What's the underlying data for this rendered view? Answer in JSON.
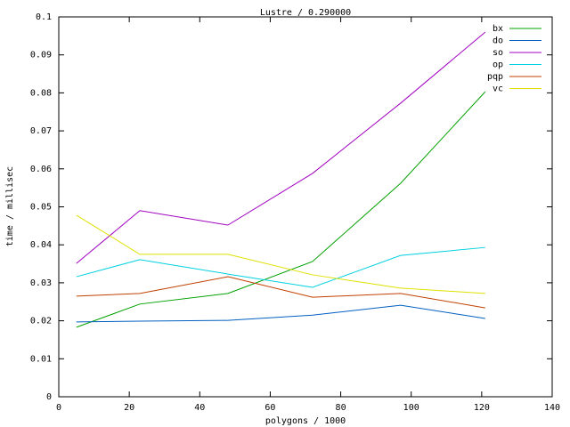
{
  "chart_data": {
    "type": "line",
    "title": "Lustre / 0.290000",
    "x_label": "polygons / 1000",
    "y_label": "time / millisec",
    "x": [
      5,
      23,
      48,
      72,
      97,
      121
    ],
    "series": [
      {
        "name": "bx",
        "color": "#00a000",
        "values": [
          0.0183,
          0.0244,
          0.0272,
          0.0356,
          0.0562,
          0.0803
        ]
      },
      {
        "name": "do",
        "color": "#0060c0",
        "values": [
          0.0197,
          0.0199,
          0.0201,
          0.0215,
          0.0241,
          0.0206
        ]
      },
      {
        "name": "so",
        "color": "#a000c0",
        "values": [
          0.0351,
          0.049,
          0.0452,
          0.0588,
          0.0773,
          0.096
        ]
      },
      {
        "name": "op",
        "color": "#00d0e0",
        "values": [
          0.0316,
          0.0361,
          0.0323,
          0.0288,
          0.0372,
          0.0393
        ]
      },
      {
        "name": "pqp",
        "color": "#c04000",
        "values": [
          0.0265,
          0.0272,
          0.0316,
          0.0262,
          0.0272,
          0.0234
        ]
      },
      {
        "name": "vc",
        "color": "#e0e000",
        "values": [
          0.0478,
          0.0375,
          0.0375,
          0.0321,
          0.0286,
          0.0272
        ]
      }
    ],
    "xlim": [
      0,
      140
    ],
    "xticks": [
      0,
      20,
      40,
      60,
      80,
      100,
      120,
      140
    ],
    "ylim": [
      0,
      0.1
    ],
    "yticks": [
      0,
      0.01,
      0.02,
      0.03,
      0.04,
      0.05,
      0.06,
      0.07,
      0.08,
      0.09,
      0.1
    ],
    "legend": "top-right"
  }
}
